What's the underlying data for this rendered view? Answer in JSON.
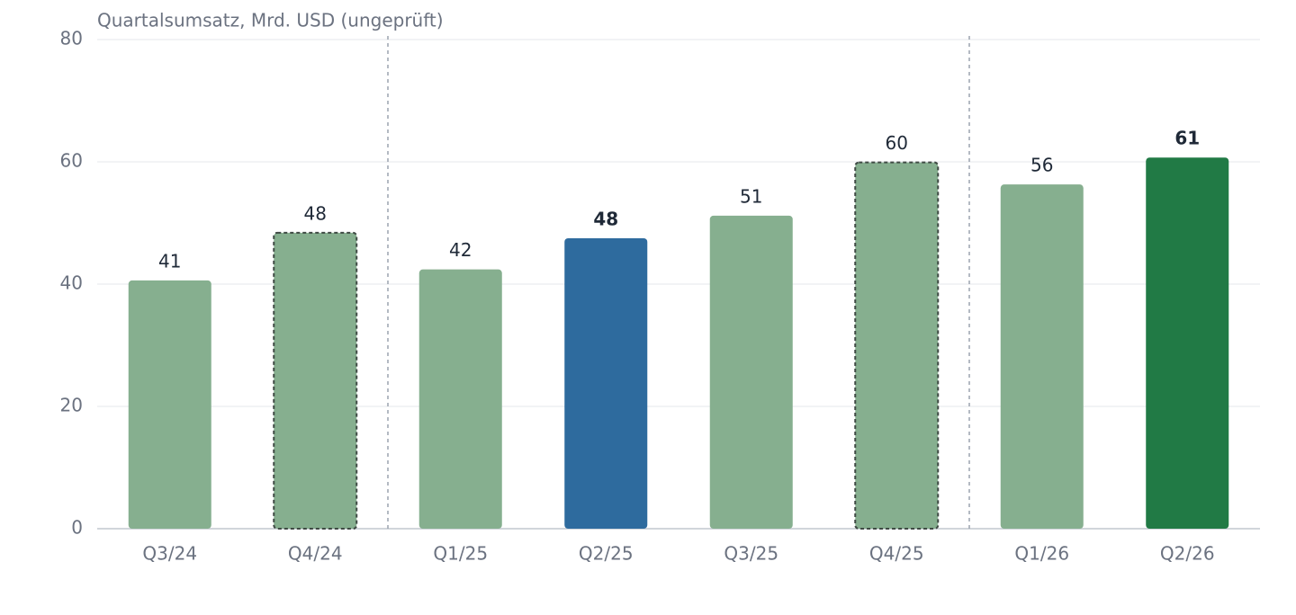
{
  "chart_data": {
    "type": "bar",
    "title": "Quartalsumsatz, Mrd. USD (ungeprüft)",
    "categories": [
      "Q3/24",
      "Q4/24",
      "Q1/25",
      "Q2/25",
      "Q3/25",
      "Q4/25",
      "Q1/26",
      "Q2/26"
    ],
    "values": [
      40.6,
      48.4,
      42.4,
      47.5,
      51.2,
      59.9,
      56.3,
      60.7
    ],
    "value_labels": [
      "41",
      "48",
      "42",
      "48",
      "51",
      "60",
      "56",
      "61"
    ],
    "colors": [
      "#86af8f",
      "#86af8f",
      "#86af8f",
      "#2e6b9e",
      "#86af8f",
      "#86af8f",
      "#86af8f",
      "#217a45"
    ],
    "dashed_outline": [
      false,
      true,
      false,
      false,
      false,
      true,
      false,
      false
    ],
    "bold_label": [
      false,
      false,
      false,
      true,
      false,
      false,
      false,
      true
    ],
    "separators_after": [
      1,
      5
    ],
    "ylim": [
      0,
      80
    ],
    "yticks": [
      0,
      20,
      40,
      60,
      80
    ],
    "grid": true
  }
}
